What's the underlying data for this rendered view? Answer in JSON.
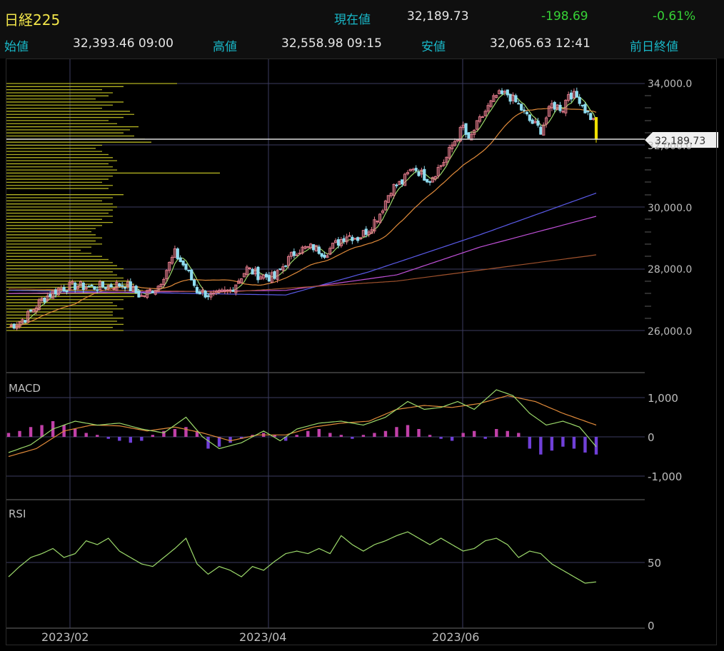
{
  "header": {
    "symbol": "日経225",
    "current_label": "現在値",
    "current_value": "32,189.73",
    "change": "-198.69",
    "change_pct": "-0.61%",
    "open_label": "始値",
    "open_value": "32,393.46 09:00",
    "high_label": "高値",
    "high_value": "32,558.98 09:15",
    "low_label": "安値",
    "low_value": "32,065.63 12:41",
    "prev_close_label": "前日終値"
  },
  "colors": {
    "up": "#e07a8a",
    "down": "#8fdcf0",
    "ma_short": "#9bd86a",
    "ma_mid": "#e08a3a",
    "ma_long1": "#5a5ae8",
    "ma_long2": "#c050d8",
    "ma_long3": "#a0522d",
    "volume_profile": "#b0b020",
    "macd_line": "#9bd86a",
    "signal_line": "#e08a3a",
    "hist_pos": "#c040a8",
    "hist_neg": "#7040d8",
    "rsi": "#9bd86a",
    "current_marker": "#f0e000"
  },
  "chart_data": [
    {
      "type": "candlestick",
      "panel": "price",
      "x_ticks": [
        "2023/02",
        "2023/04",
        "2023/06"
      ],
      "y_ticks": [
        "34,000.0",
        "32,000.0",
        "30,000.0",
        "28,000.0",
        "26,000.0"
      ],
      "ylim": [
        25800,
        34400
      ],
      "current_price_label": "32,189.73",
      "moving_averages": [
        "short",
        "mid",
        "long1",
        "long2",
        "long3"
      ],
      "close_points": [
        [
          0,
          26100
        ],
        [
          6,
          26400
        ],
        [
          12,
          27000
        ],
        [
          18,
          27350
        ],
        [
          24,
          27450
        ],
        [
          30,
          27400
        ],
        [
          36,
          27450
        ],
        [
          42,
          27500
        ],
        [
          48,
          27100
        ],
        [
          54,
          27450
        ],
        [
          60,
          28500
        ],
        [
          64,
          28000
        ],
        [
          68,
          27300
        ],
        [
          74,
          27100
        ],
        [
          80,
          27300
        ],
        [
          86,
          28000
        ],
        [
          90,
          27800
        ],
        [
          96,
          27700
        ],
        [
          100,
          28200
        ],
        [
          104,
          28600
        ],
        [
          110,
          28700
        ],
        [
          114,
          28500
        ],
        [
          118,
          28800
        ],
        [
          122,
          29100
        ],
        [
          126,
          29000
        ],
        [
          130,
          29300
        ],
        [
          134,
          29800
        ],
        [
          138,
          30600
        ],
        [
          142,
          30800
        ],
        [
          146,
          31300
        ],
        [
          150,
          31000
        ],
        [
          152,
          30900
        ],
        [
          158,
          31600
        ],
        [
          160,
          32000
        ],
        [
          164,
          32600
        ],
        [
          166,
          32100
        ],
        [
          168,
          32500
        ],
        [
          172,
          33100
        ],
        [
          176,
          33600
        ],
        [
          180,
          33650
        ],
        [
          184,
          33300
        ],
        [
          188,
          32800
        ],
        [
          192,
          32500
        ],
        [
          196,
          33300
        ],
        [
          200,
          33200
        ],
        [
          202,
          33700
        ],
        [
          206,
          33500
        ],
        [
          208,
          33150
        ],
        [
          211,
          32800
        ],
        [
          212,
          32189.73
        ]
      ],
      "volume_profile": [
        [
          34000,
          0.8
        ],
        [
          33900,
          0.55
        ],
        [
          33800,
          0.45
        ],
        [
          33700,
          0.5
        ],
        [
          33600,
          0.48
        ],
        [
          33500,
          0.42
        ],
        [
          33400,
          0.55
        ],
        [
          33300,
          0.5
        ],
        [
          33200,
          0.45
        ],
        [
          33100,
          0.58
        ],
        [
          33000,
          0.6
        ],
        [
          32900,
          0.55
        ],
        [
          32800,
          0.48
        ],
        [
          32700,
          0.52
        ],
        [
          32600,
          0.62
        ],
        [
          32500,
          0.58
        ],
        [
          32400,
          0.55
        ],
        [
          32300,
          0.6
        ],
        [
          32200,
          0.65
        ],
        [
          32100,
          0.68
        ],
        [
          32000,
          0.45
        ],
        [
          31900,
          0.42
        ],
        [
          31800,
          0.45
        ],
        [
          31700,
          0.48
        ],
        [
          31600,
          0.5
        ],
        [
          31500,
          0.52
        ],
        [
          31400,
          0.48
        ],
        [
          31300,
          0.5
        ],
        [
          31200,
          0.52
        ],
        [
          31100,
          1.0
        ],
        [
          31000,
          0.5
        ],
        [
          30900,
          0.48
        ],
        [
          30800,
          0.45
        ],
        [
          30700,
          0.5
        ],
        [
          30600,
          0.48
        ],
        [
          30400,
          0.55
        ],
        [
          30300,
          0.5
        ],
        [
          30200,
          0.45
        ],
        [
          30100,
          0.5
        ],
        [
          30000,
          0.52
        ],
        [
          29900,
          0.5
        ],
        [
          29800,
          0.48
        ],
        [
          29700,
          0.5
        ],
        [
          29600,
          0.45
        ],
        [
          29500,
          0.5
        ],
        [
          29400,
          0.45
        ],
        [
          29300,
          0.42
        ],
        [
          29200,
          0.4
        ],
        [
          29100,
          0.42
        ],
        [
          29000,
          0.45
        ],
        [
          28900,
          0.42
        ],
        [
          28800,
          0.45
        ],
        [
          28700,
          0.4
        ],
        [
          28600,
          0.35
        ],
        [
          28500,
          0.4
        ],
        [
          28400,
          0.45
        ],
        [
          28300,
          0.48
        ],
        [
          28200,
          0.5
        ],
        [
          28100,
          0.52
        ],
        [
          28000,
          0.55
        ],
        [
          27900,
          0.5
        ],
        [
          27800,
          0.52
        ],
        [
          27700,
          0.55
        ],
        [
          27600,
          0.58
        ],
        [
          27500,
          0.6
        ],
        [
          27400,
          0.62
        ],
        [
          27300,
          0.64
        ],
        [
          27200,
          0.62
        ],
        [
          27100,
          0.6
        ],
        [
          27000,
          0.55
        ],
        [
          26900,
          0.5
        ],
        [
          26800,
          0.52
        ],
        [
          26700,
          0.55
        ],
        [
          26600,
          0.5
        ],
        [
          26500,
          0.5
        ],
        [
          26400,
          0.55
        ],
        [
          26300,
          0.52
        ],
        [
          26200,
          0.55
        ],
        [
          26100,
          0.5
        ],
        [
          26000,
          0.55
        ]
      ]
    },
    {
      "type": "line",
      "panel": "MACD",
      "title": "MACD",
      "y_ticks": [
        "1,000",
        "0",
        "-1,000"
      ],
      "ylim": [
        -1800,
        1800
      ],
      "macd": [
        [
          0,
          -400
        ],
        [
          8,
          -200
        ],
        [
          16,
          200
        ],
        [
          24,
          400
        ],
        [
          32,
          300
        ],
        [
          40,
          350
        ],
        [
          48,
          200
        ],
        [
          56,
          100
        ],
        [
          64,
          500
        ],
        [
          70,
          0
        ],
        [
          76,
          -300
        ],
        [
          84,
          -150
        ],
        [
          92,
          150
        ],
        [
          98,
          -100
        ],
        [
          104,
          200
        ],
        [
          112,
          350
        ],
        [
          120,
          400
        ],
        [
          128,
          300
        ],
        [
          136,
          500
        ],
        [
          144,
          900
        ],
        [
          150,
          700
        ],
        [
          156,
          750
        ],
        [
          162,
          900
        ],
        [
          168,
          700
        ],
        [
          176,
          1200
        ],
        [
          182,
          1050
        ],
        [
          188,
          600
        ],
        [
          194,
          300
        ],
        [
          200,
          400
        ],
        [
          206,
          250
        ],
        [
          212,
          -250
        ]
      ],
      "signal": [
        [
          0,
          -500
        ],
        [
          10,
          -300
        ],
        [
          20,
          150
        ],
        [
          30,
          300
        ],
        [
          40,
          280
        ],
        [
          50,
          150
        ],
        [
          60,
          250
        ],
        [
          70,
          100
        ],
        [
          80,
          -100
        ],
        [
          90,
          50
        ],
        [
          100,
          50
        ],
        [
          110,
          250
        ],
        [
          120,
          350
        ],
        [
          130,
          400
        ],
        [
          140,
          700
        ],
        [
          150,
          800
        ],
        [
          160,
          750
        ],
        [
          170,
          850
        ],
        [
          180,
          1050
        ],
        [
          190,
          900
        ],
        [
          200,
          600
        ],
        [
          212,
          300
        ]
      ],
      "histogram": [
        [
          0,
          100
        ],
        [
          4,
          150
        ],
        [
          8,
          250
        ],
        [
          12,
          300
        ],
        [
          16,
          400
        ],
        [
          20,
          300
        ],
        [
          24,
          200
        ],
        [
          28,
          100
        ],
        [
          32,
          50
        ],
        [
          36,
          -50
        ],
        [
          40,
          -100
        ],
        [
          44,
          -150
        ],
        [
          48,
          -100
        ],
        [
          52,
          50
        ],
        [
          56,
          150
        ],
        [
          60,
          200
        ],
        [
          64,
          250
        ],
        [
          68,
          150
        ],
        [
          72,
          -300
        ],
        [
          76,
          -250
        ],
        [
          80,
          -150
        ],
        [
          84,
          -50
        ],
        [
          88,
          50
        ],
        [
          92,
          100
        ],
        [
          96,
          50
        ],
        [
          100,
          -100
        ],
        [
          104,
          50
        ],
        [
          108,
          150
        ],
        [
          112,
          200
        ],
        [
          116,
          100
        ],
        [
          120,
          50
        ],
        [
          124,
          -50
        ],
        [
          128,
          50
        ],
        [
          132,
          100
        ],
        [
          136,
          150
        ],
        [
          140,
          250
        ],
        [
          144,
          300
        ],
        [
          148,
          200
        ],
        [
          152,
          50
        ],
        [
          156,
          -50
        ],
        [
          160,
          -100
        ],
        [
          164,
          100
        ],
        [
          168,
          150
        ],
        [
          172,
          -50
        ],
        [
          176,
          200
        ],
        [
          180,
          150
        ],
        [
          184,
          100
        ],
        [
          188,
          -300
        ],
        [
          192,
          -450
        ],
        [
          196,
          -350
        ],
        [
          200,
          -250
        ],
        [
          204,
          -300
        ],
        [
          208,
          -400
        ],
        [
          212,
          -450
        ]
      ]
    },
    {
      "type": "line",
      "panel": "RSI",
      "title": "RSI",
      "y_ticks": [
        "50",
        "0"
      ],
      "ylim": [
        0,
        100
      ],
      "values": [
        [
          0,
          40
        ],
        [
          4,
          48
        ],
        [
          8,
          55
        ],
        [
          12,
          58
        ],
        [
          16,
          62
        ],
        [
          20,
          55
        ],
        [
          24,
          58
        ],
        [
          28,
          68
        ],
        [
          32,
          65
        ],
        [
          36,
          70
        ],
        [
          40,
          60
        ],
        [
          44,
          55
        ],
        [
          48,
          50
        ],
        [
          52,
          48
        ],
        [
          56,
          55
        ],
        [
          60,
          62
        ],
        [
          64,
          70
        ],
        [
          68,
          50
        ],
        [
          72,
          42
        ],
        [
          76,
          48
        ],
        [
          80,
          45
        ],
        [
          84,
          40
        ],
        [
          88,
          48
        ],
        [
          92,
          45
        ],
        [
          96,
          52
        ],
        [
          100,
          58
        ],
        [
          104,
          60
        ],
        [
          108,
          58
        ],
        [
          112,
          62
        ],
        [
          116,
          58
        ],
        [
          120,
          72
        ],
        [
          124,
          65
        ],
        [
          128,
          60
        ],
        [
          132,
          65
        ],
        [
          136,
          68
        ],
        [
          140,
          72
        ],
        [
          144,
          75
        ],
        [
          148,
          70
        ],
        [
          152,
          65
        ],
        [
          156,
          70
        ],
        [
          160,
          65
        ],
        [
          164,
          60
        ],
        [
          168,
          62
        ],
        [
          172,
          68
        ],
        [
          176,
          70
        ],
        [
          180,
          65
        ],
        [
          184,
          55
        ],
        [
          188,
          60
        ],
        [
          192,
          58
        ],
        [
          196,
          50
        ],
        [
          200,
          45
        ],
        [
          204,
          40
        ],
        [
          208,
          35
        ],
        [
          212,
          36
        ]
      ]
    }
  ]
}
